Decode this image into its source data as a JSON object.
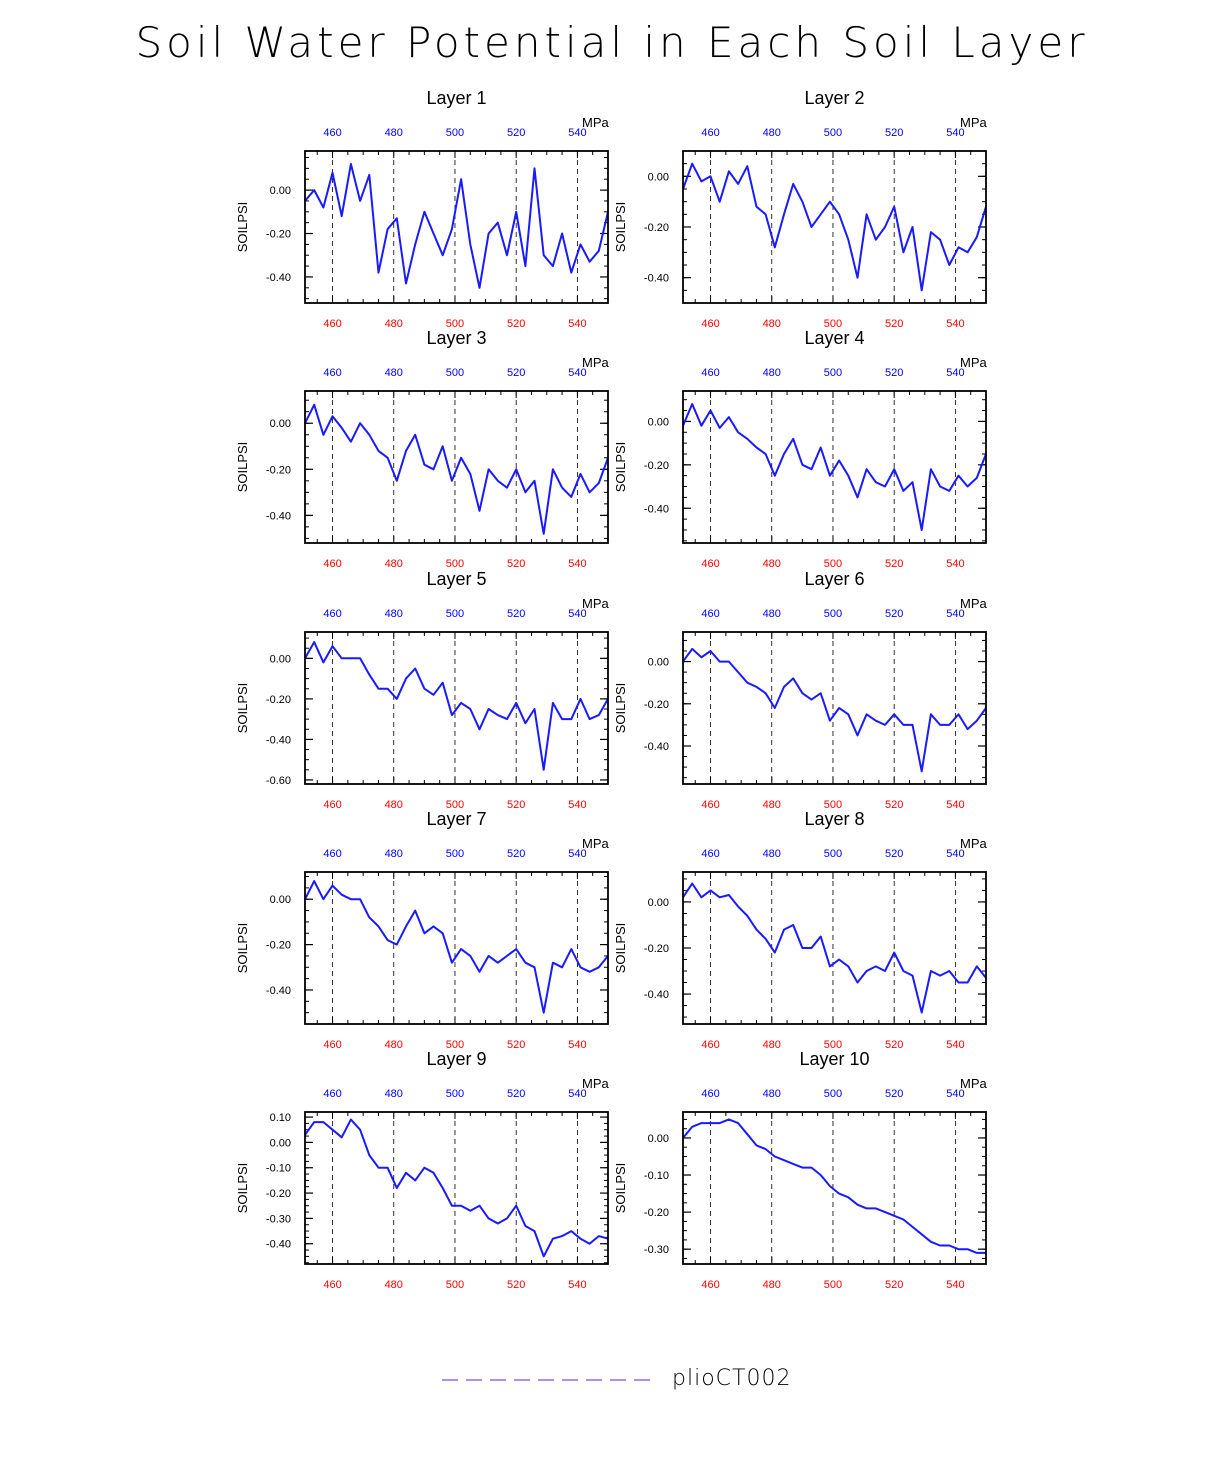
{
  "title": "Soil Water Potential in Each Soil Layer",
  "legend": {
    "label": "plioCT002",
    "color": "#b38cf0"
  },
  "colors": {
    "line": "#1a1aff",
    "top_ticks": "#0000ff",
    "bottom_ticks": "#ff0000"
  },
  "chart_data": [
    {
      "type": "line",
      "title": "Layer 1",
      "ylabel": "SOILPSI",
      "top_unit": "MPa",
      "xlim": [
        451,
        550
      ],
      "ylim": [
        -0.52,
        0.18
      ],
      "yticks": [
        0.0,
        -0.2,
        -0.4
      ],
      "ytick_labels": [
        "0.00",
        "-0.20",
        "-0.40"
      ],
      "xticks": [
        460,
        480,
        500,
        520,
        540
      ],
      "x": [
        451,
        454,
        457,
        460,
        463,
        466,
        469,
        472,
        475,
        478,
        481,
        484,
        487,
        490,
        493,
        496,
        499,
        502,
        505,
        508,
        511,
        514,
        517,
        520,
        523,
        526,
        529,
        532,
        535,
        538,
        541,
        544,
        547,
        550
      ],
      "y": [
        -0.05,
        0.0,
        -0.08,
        0.08,
        -0.12,
        0.12,
        -0.05,
        0.07,
        -0.38,
        -0.18,
        -0.13,
        -0.43,
        -0.25,
        -0.1,
        -0.2,
        -0.3,
        -0.18,
        0.05,
        -0.25,
        -0.45,
        -0.2,
        -0.15,
        -0.3,
        -0.1,
        -0.35,
        0.1,
        -0.3,
        -0.35,
        -0.2,
        -0.38,
        -0.25,
        -0.33,
        -0.28,
        -0.1
      ]
    },
    {
      "type": "line",
      "title": "Layer 2",
      "ylabel": "SOILPSI",
      "top_unit": "MPa",
      "xlim": [
        451,
        550
      ],
      "ylim": [
        -0.5,
        0.1
      ],
      "yticks": [
        0.0,
        -0.2,
        -0.4
      ],
      "ytick_labels": [
        "0.00",
        "-0.20",
        "-0.40"
      ],
      "xticks": [
        460,
        480,
        500,
        520,
        540
      ],
      "x": [
        451,
        454,
        457,
        460,
        463,
        466,
        469,
        472,
        475,
        478,
        481,
        484,
        487,
        490,
        493,
        496,
        499,
        502,
        505,
        508,
        511,
        514,
        517,
        520,
        523,
        526,
        529,
        532,
        535,
        538,
        541,
        544,
        547,
        550
      ],
      "y": [
        -0.05,
        0.05,
        -0.02,
        0.0,
        -0.1,
        0.02,
        -0.03,
        0.04,
        -0.12,
        -0.15,
        -0.28,
        -0.15,
        -0.03,
        -0.1,
        -0.2,
        -0.15,
        -0.1,
        -0.15,
        -0.25,
        -0.4,
        -0.15,
        -0.25,
        -0.2,
        -0.12,
        -0.3,
        -0.2,
        -0.45,
        -0.22,
        -0.25,
        -0.35,
        -0.28,
        -0.3,
        -0.24,
        -0.12
      ]
    },
    {
      "type": "line",
      "title": "Layer 3",
      "ylabel": "SOILPSI",
      "top_unit": "MPa",
      "xlim": [
        451,
        550
      ],
      "ylim": [
        -0.52,
        0.14
      ],
      "yticks": [
        0.0,
        -0.2,
        -0.4
      ],
      "ytick_labels": [
        "0.00",
        "-0.20",
        "-0.40"
      ],
      "xticks": [
        460,
        480,
        500,
        520,
        540
      ],
      "x": [
        451,
        454,
        457,
        460,
        463,
        466,
        469,
        472,
        475,
        478,
        481,
        484,
        487,
        490,
        493,
        496,
        499,
        502,
        505,
        508,
        511,
        514,
        517,
        520,
        523,
        526,
        529,
        532,
        535,
        538,
        541,
        544,
        547,
        550
      ],
      "y": [
        0.0,
        0.08,
        -0.05,
        0.03,
        -0.02,
        -0.08,
        0.0,
        -0.05,
        -0.12,
        -0.15,
        -0.25,
        -0.12,
        -0.05,
        -0.18,
        -0.2,
        -0.1,
        -0.25,
        -0.15,
        -0.22,
        -0.38,
        -0.2,
        -0.25,
        -0.28,
        -0.2,
        -0.3,
        -0.25,
        -0.48,
        -0.2,
        -0.28,
        -0.32,
        -0.22,
        -0.3,
        -0.26,
        -0.15
      ]
    },
    {
      "type": "line",
      "title": "Layer 4",
      "ylabel": "SOILPSI",
      "top_unit": "MPa",
      "xlim": [
        451,
        550
      ],
      "ylim": [
        -0.56,
        0.14
      ],
      "yticks": [
        0.0,
        -0.2,
        -0.4
      ],
      "ytick_labels": [
        "0.00",
        "-0.20",
        "-0.40"
      ],
      "xticks": [
        460,
        480,
        500,
        520,
        540
      ],
      "x": [
        451,
        454,
        457,
        460,
        463,
        466,
        469,
        472,
        475,
        478,
        481,
        484,
        487,
        490,
        493,
        496,
        499,
        502,
        505,
        508,
        511,
        514,
        517,
        520,
        523,
        526,
        529,
        532,
        535,
        538,
        541,
        544,
        547,
        550
      ],
      "y": [
        -0.02,
        0.08,
        -0.02,
        0.05,
        -0.03,
        0.02,
        -0.05,
        -0.08,
        -0.12,
        -0.15,
        -0.25,
        -0.15,
        -0.08,
        -0.2,
        -0.22,
        -0.12,
        -0.25,
        -0.18,
        -0.25,
        -0.35,
        -0.22,
        -0.28,
        -0.3,
        -0.22,
        -0.32,
        -0.28,
        -0.5,
        -0.22,
        -0.3,
        -0.32,
        -0.25,
        -0.3,
        -0.26,
        -0.15
      ]
    },
    {
      "type": "line",
      "title": "Layer 5",
      "ylabel": "SOILPSI",
      "top_unit": "MPa",
      "xlim": [
        451,
        550
      ],
      "ylim": [
        -0.62,
        0.13
      ],
      "yticks": [
        0.0,
        -0.2,
        -0.4,
        -0.6
      ],
      "ytick_labels": [
        "0.00",
        "-0.20",
        "-0.40",
        "-0.60"
      ],
      "xticks": [
        460,
        480,
        500,
        520,
        540
      ],
      "x": [
        451,
        454,
        457,
        460,
        463,
        466,
        469,
        472,
        475,
        478,
        481,
        484,
        487,
        490,
        493,
        496,
        499,
        502,
        505,
        508,
        511,
        514,
        517,
        520,
        523,
        526,
        529,
        532,
        535,
        538,
        541,
        544,
        547,
        550
      ],
      "y": [
        0.0,
        0.08,
        -0.02,
        0.06,
        0.0,
        0.0,
        0.0,
        -0.08,
        -0.15,
        -0.15,
        -0.2,
        -0.1,
        -0.05,
        -0.15,
        -0.18,
        -0.12,
        -0.28,
        -0.22,
        -0.25,
        -0.35,
        -0.25,
        -0.28,
        -0.3,
        -0.22,
        -0.32,
        -0.25,
        -0.55,
        -0.22,
        -0.3,
        -0.3,
        -0.2,
        -0.3,
        -0.28,
        -0.2
      ]
    },
    {
      "type": "line",
      "title": "Layer 6",
      "ylabel": "SOILPSI",
      "top_unit": "MPa",
      "xlim": [
        451,
        550
      ],
      "ylim": [
        -0.58,
        0.14
      ],
      "yticks": [
        0.0,
        -0.2,
        -0.4
      ],
      "ytick_labels": [
        "0.00",
        "-0.20",
        "-0.40"
      ],
      "xticks": [
        460,
        480,
        500,
        520,
        540
      ],
      "x": [
        451,
        454,
        457,
        460,
        463,
        466,
        469,
        472,
        475,
        478,
        481,
        484,
        487,
        490,
        493,
        496,
        499,
        502,
        505,
        508,
        511,
        514,
        517,
        520,
        523,
        526,
        529,
        532,
        535,
        538,
        541,
        544,
        547,
        550
      ],
      "y": [
        0.0,
        0.06,
        0.02,
        0.05,
        0.0,
        0.0,
        -0.05,
        -0.1,
        -0.12,
        -0.15,
        -0.22,
        -0.12,
        -0.08,
        -0.15,
        -0.18,
        -0.15,
        -0.28,
        -0.22,
        -0.25,
        -0.35,
        -0.25,
        -0.28,
        -0.3,
        -0.25,
        -0.3,
        -0.3,
        -0.52,
        -0.25,
        -0.3,
        -0.3,
        -0.25,
        -0.32,
        -0.28,
        -0.22
      ]
    },
    {
      "type": "line",
      "title": "Layer 7",
      "ylabel": "SOILPSI",
      "top_unit": "MPa",
      "xlim": [
        451,
        550
      ],
      "ylim": [
        -0.55,
        0.12
      ],
      "yticks": [
        0.0,
        -0.2,
        -0.4
      ],
      "ytick_labels": [
        "0.00",
        "-0.20",
        "-0.40"
      ],
      "xticks": [
        460,
        480,
        500,
        520,
        540
      ],
      "x": [
        451,
        454,
        457,
        460,
        463,
        466,
        469,
        472,
        475,
        478,
        481,
        484,
        487,
        490,
        493,
        496,
        499,
        502,
        505,
        508,
        511,
        514,
        517,
        520,
        523,
        526,
        529,
        532,
        535,
        538,
        541,
        544,
        547,
        550
      ],
      "y": [
        0.0,
        0.08,
        0.0,
        0.06,
        0.02,
        0.0,
        0.0,
        -0.08,
        -0.12,
        -0.18,
        -0.2,
        -0.12,
        -0.05,
        -0.15,
        -0.12,
        -0.15,
        -0.28,
        -0.22,
        -0.25,
        -0.32,
        -0.25,
        -0.28,
        -0.25,
        -0.22,
        -0.28,
        -0.3,
        -0.5,
        -0.28,
        -0.3,
        -0.22,
        -0.3,
        -0.32,
        -0.3,
        -0.25
      ]
    },
    {
      "type": "line",
      "title": "Layer 8",
      "ylabel": "SOILPSI",
      "top_unit": "MPa",
      "xlim": [
        451,
        550
      ],
      "ylim": [
        -0.53,
        0.13
      ],
      "yticks": [
        0.0,
        -0.2,
        -0.4
      ],
      "ytick_labels": [
        "0.00",
        "-0.20",
        "-0.40"
      ],
      "xticks": [
        460,
        480,
        500,
        520,
        540
      ],
      "x": [
        451,
        454,
        457,
        460,
        463,
        466,
        469,
        472,
        475,
        478,
        481,
        484,
        487,
        490,
        493,
        496,
        499,
        502,
        505,
        508,
        511,
        514,
        517,
        520,
        523,
        526,
        529,
        532,
        535,
        538,
        541,
        544,
        547,
        550
      ],
      "y": [
        0.02,
        0.08,
        0.02,
        0.05,
        0.02,
        0.03,
        -0.02,
        -0.06,
        -0.12,
        -0.16,
        -0.22,
        -0.12,
        -0.1,
        -0.2,
        -0.2,
        -0.15,
        -0.28,
        -0.25,
        -0.28,
        -0.35,
        -0.3,
        -0.28,
        -0.3,
        -0.22,
        -0.3,
        -0.32,
        -0.48,
        -0.3,
        -0.32,
        -0.3,
        -0.35,
        -0.35,
        -0.28,
        -0.33
      ]
    },
    {
      "type": "line",
      "title": "Layer 9",
      "ylabel": "SOILPSI",
      "top_unit": "MPa",
      "xlim": [
        451,
        550
      ],
      "ylim": [
        -0.48,
        0.12
      ],
      "yticks": [
        0.1,
        0.0,
        -0.1,
        -0.2,
        -0.3,
        -0.4
      ],
      "ytick_labels": [
        "0.10",
        "0.00",
        "-0.10",
        "-0.20",
        "-0.30",
        "-0.40"
      ],
      "xticks": [
        460,
        480,
        500,
        520,
        540
      ],
      "x": [
        451,
        454,
        457,
        460,
        463,
        466,
        469,
        472,
        475,
        478,
        481,
        484,
        487,
        490,
        493,
        496,
        499,
        502,
        505,
        508,
        511,
        514,
        517,
        520,
        523,
        526,
        529,
        532,
        535,
        538,
        541,
        544,
        547,
        550
      ],
      "y": [
        0.03,
        0.08,
        0.08,
        0.05,
        0.02,
        0.09,
        0.05,
        -0.05,
        -0.1,
        -0.1,
        -0.18,
        -0.12,
        -0.15,
        -0.1,
        -0.12,
        -0.18,
        -0.25,
        -0.25,
        -0.27,
        -0.25,
        -0.3,
        -0.32,
        -0.3,
        -0.25,
        -0.33,
        -0.35,
        -0.45,
        -0.38,
        -0.37,
        -0.35,
        -0.38,
        -0.4,
        -0.37,
        -0.38
      ]
    },
    {
      "type": "line",
      "title": "Layer 10",
      "ylabel": "SOILPSI",
      "top_unit": "MPa",
      "xlim": [
        451,
        550
      ],
      "ylim": [
        -0.34,
        0.07
      ],
      "yticks": [
        0.0,
        -0.1,
        -0.2,
        -0.3
      ],
      "ytick_labels": [
        "0.00",
        "-0.10",
        "-0.20",
        "-0.30"
      ],
      "xticks": [
        460,
        480,
        500,
        520,
        540
      ],
      "x": [
        451,
        454,
        457,
        460,
        463,
        466,
        469,
        472,
        475,
        478,
        481,
        484,
        487,
        490,
        493,
        496,
        499,
        502,
        505,
        508,
        511,
        514,
        517,
        520,
        523,
        526,
        529,
        532,
        535,
        538,
        541,
        544,
        547,
        550
      ],
      "y": [
        0.0,
        0.03,
        0.04,
        0.04,
        0.04,
        0.05,
        0.04,
        0.01,
        -0.02,
        -0.03,
        -0.05,
        -0.06,
        -0.07,
        -0.08,
        -0.08,
        -0.1,
        -0.13,
        -0.15,
        -0.16,
        -0.18,
        -0.19,
        -0.19,
        -0.2,
        -0.21,
        -0.22,
        -0.24,
        -0.26,
        -0.28,
        -0.29,
        -0.29,
        -0.3,
        -0.3,
        -0.31,
        -0.31
      ]
    }
  ]
}
